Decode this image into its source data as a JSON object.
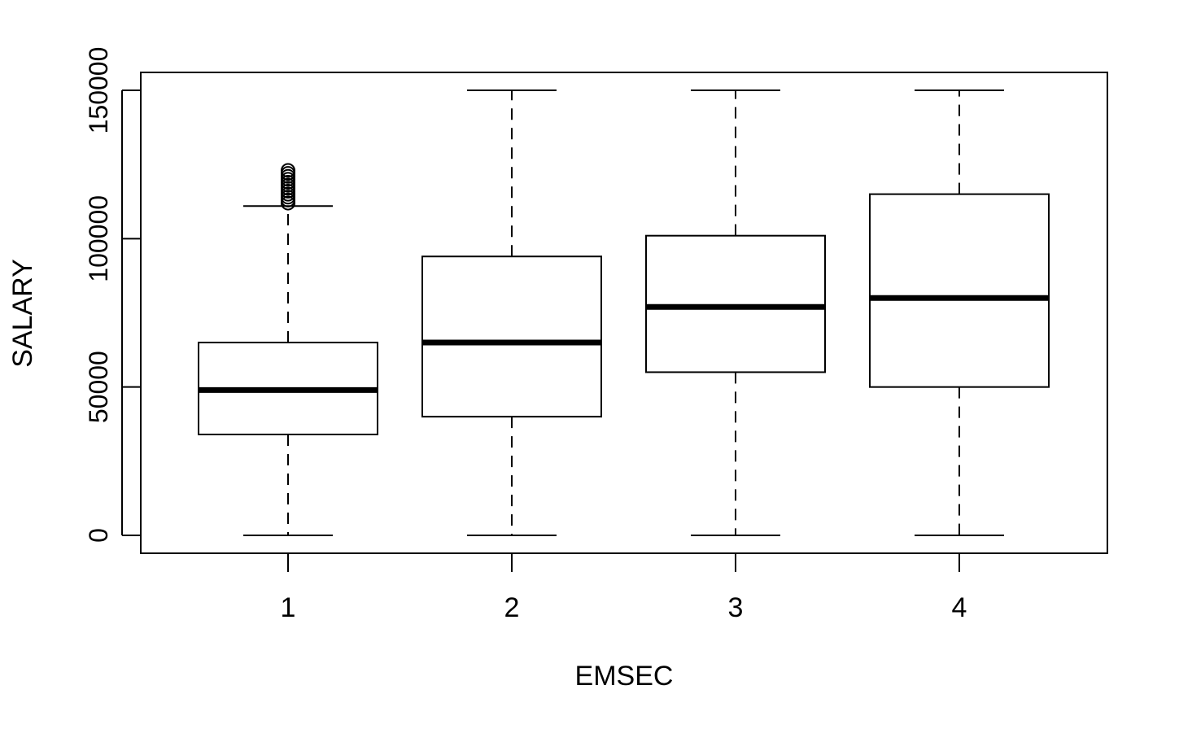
{
  "chart_data": {
    "type": "boxplot",
    "title": "",
    "xlabel": "EMSEC",
    "ylabel": "SALARY",
    "ylim": [
      -6000,
      156000
    ],
    "yticks": [
      0,
      50000,
      100000,
      150000
    ],
    "ytick_labels": [
      "0",
      "50000",
      "100000",
      "150000"
    ],
    "grid": false,
    "categories": [
      "1",
      "2",
      "3",
      "4"
    ],
    "boxes": [
      {
        "category": "1",
        "whisker_low": 0,
        "q1": 34000,
        "median": 49000,
        "q3": 65000,
        "whisker_high": 111000,
        "outliers": [
          112000,
          113000,
          114000,
          115000,
          116000,
          117000,
          118000,
          119000,
          120000,
          121000,
          122000,
          123000
        ]
      },
      {
        "category": "2",
        "whisker_low": 0,
        "q1": 40000,
        "median": 65000,
        "q3": 94000,
        "whisker_high": 150000,
        "outliers": []
      },
      {
        "category": "3",
        "whisker_low": 0,
        "q1": 55000,
        "median": 77000,
        "q3": 101000,
        "whisker_high": 150000,
        "outliers": []
      },
      {
        "category": "4",
        "whisker_low": 0,
        "q1": 50000,
        "median": 80000,
        "q3": 115000,
        "whisker_high": 150000,
        "outliers": []
      }
    ]
  }
}
